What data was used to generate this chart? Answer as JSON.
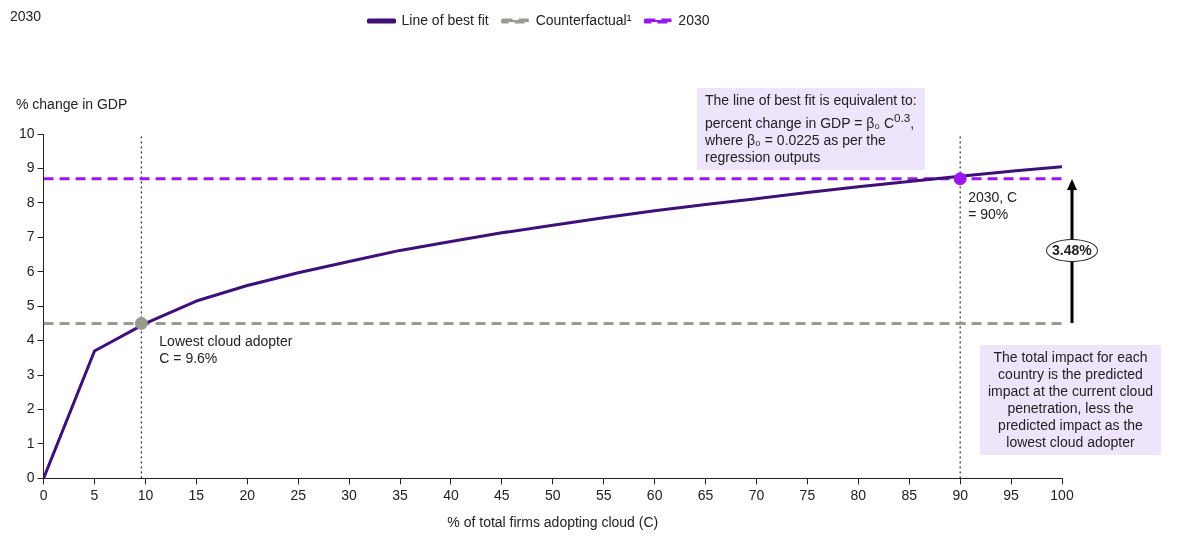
{
  "chart_data": {
    "type": "line",
    "title": "2030",
    "xlabel": "% of total firms adopting cloud (C)",
    "ylabel": "% change in GDP",
    "x": [
      0,
      5,
      10,
      15,
      20,
      25,
      30,
      35,
      40,
      45,
      50,
      55,
      60,
      65,
      70,
      75,
      80,
      85,
      90,
      95,
      100
    ],
    "series": [
      {
        "name": "Line of best fit",
        "color": "#3f0f7a",
        "values": [
          0,
          3.7,
          4.5,
          5.15,
          5.6,
          5.97,
          6.3,
          6.62,
          6.88,
          7.13,
          7.35,
          7.57,
          7.77,
          7.95,
          8.12,
          8.3,
          8.47,
          8.62,
          8.77,
          8.92,
          9.05
        ]
      },
      {
        "name": "Counterfactual¹",
        "color": "#9a9a90",
        "line_style": "dashed",
        "x": [
          0,
          100
        ],
        "values": [
          4.5,
          4.5
        ]
      },
      {
        "name": "2030",
        "color": "#9b17f0",
        "line_style": "dashed",
        "x": [
          0,
          100
        ],
        "values": [
          8.7,
          8.7
        ]
      },
      {
        "type": "scatter",
        "marker": "circle",
        "color": "#9a9a90",
        "x": [
          9.6
        ],
        "values": [
          4.5
        ]
      },
      {
        "type": "scatter",
        "marker": "circle",
        "color": "#9b17f0",
        "x": [
          90
        ],
        "values": [
          8.7
        ]
      }
    ],
    "xlim": [
      0,
      100
    ],
    "xticks": [
      0,
      5,
      10,
      15,
      20,
      25,
      30,
      35,
      40,
      45,
      50,
      55,
      60,
      65,
      70,
      75,
      80,
      85,
      90,
      95,
      100
    ],
    "ylim": [
      0,
      10
    ],
    "yticks": [
      0,
      1,
      2,
      3,
      4,
      5,
      6,
      7,
      8,
      9,
      10
    ],
    "grid": false,
    "legend": "top",
    "marker": "none",
    "ref_lines": [
      {
        "axis": "x",
        "value": 9.6,
        "color": "#000000",
        "line_style": "dotted"
      },
      {
        "axis": "x",
        "value": 90,
        "color": "#000000",
        "line_style": "dotted"
      }
    ],
    "annotations": [
      {
        "text": "Lowest cloud adopter\nC = 9.6%",
        "x": 9.6,
        "y": 4.5
      },
      {
        "text": "2030, C\n= 90%",
        "x": 90,
        "y": 8.7
      },
      "3.48%",
      "The line of best fit is equivalent to:\npercent change in GDP = β₀ C$^{0.3}$,\nwhere β₀ = 0.0225 as per the\nregression outputs",
      "The total impact for each\ncountry is the predicted\nimpact at the current cloud\npenetration, less the\npredicted impact as the\nlowest cloud adopter"
    ]
  }
}
